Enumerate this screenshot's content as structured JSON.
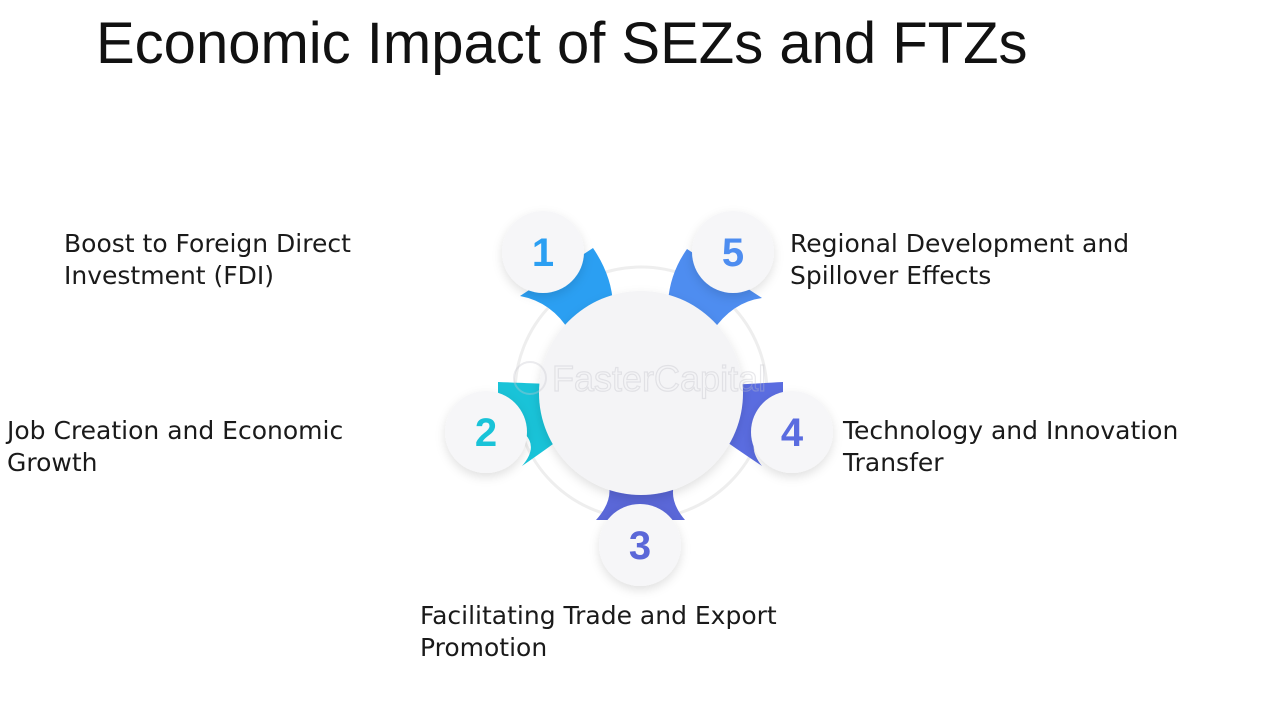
{
  "title": "Economic Impact of SEZs and FTZs",
  "watermark": "FasterCapital",
  "colors": {
    "step1": "#2b9ff2",
    "step2": "#19c3d8",
    "step3": "#5a67d8",
    "step4": "#5a6ce0",
    "step5": "#4e8df0",
    "circle_fill": "#f4f4f6"
  },
  "steps": [
    {
      "number": "1",
      "label": "Boost to Foreign Direct\nInvestment (FDI)"
    },
    {
      "number": "2",
      "label": "Job Creation and Economic\nGrowth"
    },
    {
      "number": "3",
      "label": "Facilitating Trade and Export\nPromotion"
    },
    {
      "number": "4",
      "label": "Technology and Innovation\nTransfer"
    },
    {
      "number": "5",
      "label": "Regional Development and\nSpillover Effects"
    }
  ]
}
